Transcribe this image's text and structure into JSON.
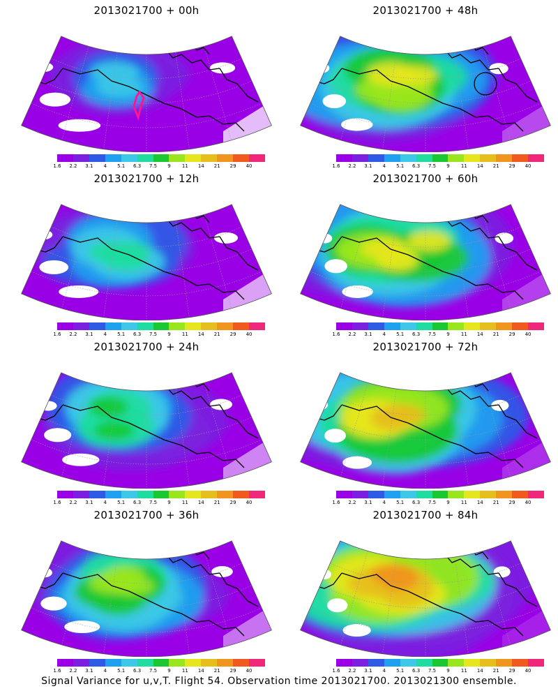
{
  "caption": "Signal Variance for u,v,T. Flight 54. Observation time 2013021700. 2013021300 ensemble.",
  "colorbar": {
    "colors": [
      "#9a00e6",
      "#7b1fe0",
      "#2e5ae6",
      "#1fa0f0",
      "#3cc8e6",
      "#1fdca0",
      "#19c832",
      "#9ae61e",
      "#e6e61e",
      "#e6be1e",
      "#f0961e",
      "#f05a1e",
      "#f0287a"
    ],
    "ticks": [
      "1.6",
      "2.2",
      "3.1",
      "4",
      "5.1",
      "6.3",
      "7.5",
      "9",
      "11",
      "14",
      "21",
      "29",
      "40"
    ]
  },
  "panels": [
    {
      "title": "2013021700 + 00h",
      "intensity": 0.18,
      "track": true,
      "circle": false
    },
    {
      "title": "2013021700 + 48h",
      "intensity": 0.68,
      "track": false,
      "circle": true
    },
    {
      "title": "2013021700 + 12h",
      "intensity": 0.3,
      "track": false,
      "circle": false
    },
    {
      "title": "2013021700 + 60h",
      "intensity": 0.72,
      "track": false,
      "circle": false
    },
    {
      "title": "2013021700 + 24h",
      "intensity": 0.42,
      "track": false,
      "circle": false
    },
    {
      "title": "2013021700 + 72h",
      "intensity": 0.8,
      "track": false,
      "circle": false
    },
    {
      "title": "2013021700 + 36h",
      "intensity": 0.5,
      "track": false,
      "circle": false
    },
    {
      "title": "2013021700 + 84h",
      "intensity": 0.86,
      "track": false,
      "circle": false
    }
  ]
}
